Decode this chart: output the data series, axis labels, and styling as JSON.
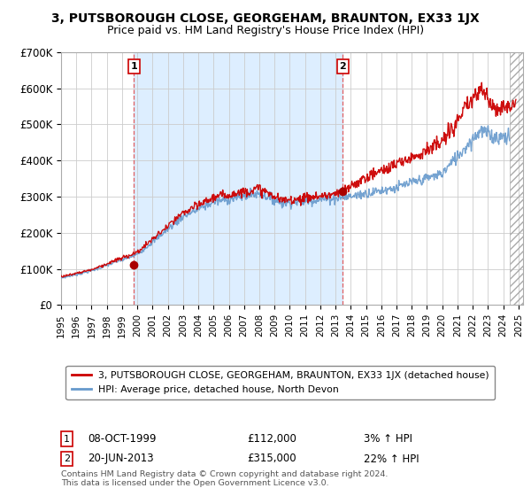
{
  "title": "3, PUTSBOROUGH CLOSE, GEORGEHAM, BRAUNTON, EX33 1JX",
  "subtitle": "Price paid vs. HM Land Registry's House Price Index (HPI)",
  "ylim": [
    0,
    700000
  ],
  "yticks": [
    0,
    100000,
    200000,
    300000,
    400000,
    500000,
    600000,
    700000
  ],
  "ytick_labels": [
    "£0",
    "£100K",
    "£200K",
    "£300K",
    "£400K",
    "£500K",
    "£600K",
    "£700K"
  ],
  "sale1_x": 1999.77,
  "sale2_x": 2013.47,
  "line1_label": "3, PUTSBOROUGH CLOSE, GEORGEHAM, BRAUNTON, EX33 1JX (detached house)",
  "line2_label": "HPI: Average price, detached house, North Devon",
  "line1_color": "#cc0000",
  "line2_color": "#6699cc",
  "vline_color": "#e05050",
  "marker_color": "#aa0000",
  "grid_color": "#cccccc",
  "bg_color": "#ffffff",
  "shade_color": "#ddeeff",
  "footer": "Contains HM Land Registry data © Crown copyright and database right 2024.\nThis data is licensed under the Open Government Licence v3.0.",
  "xmin": 1995.0,
  "xmax": 2025.3,
  "hatch_start": 2024.42,
  "hpi_end": 2024.42,
  "prop_end": 2024.83
}
